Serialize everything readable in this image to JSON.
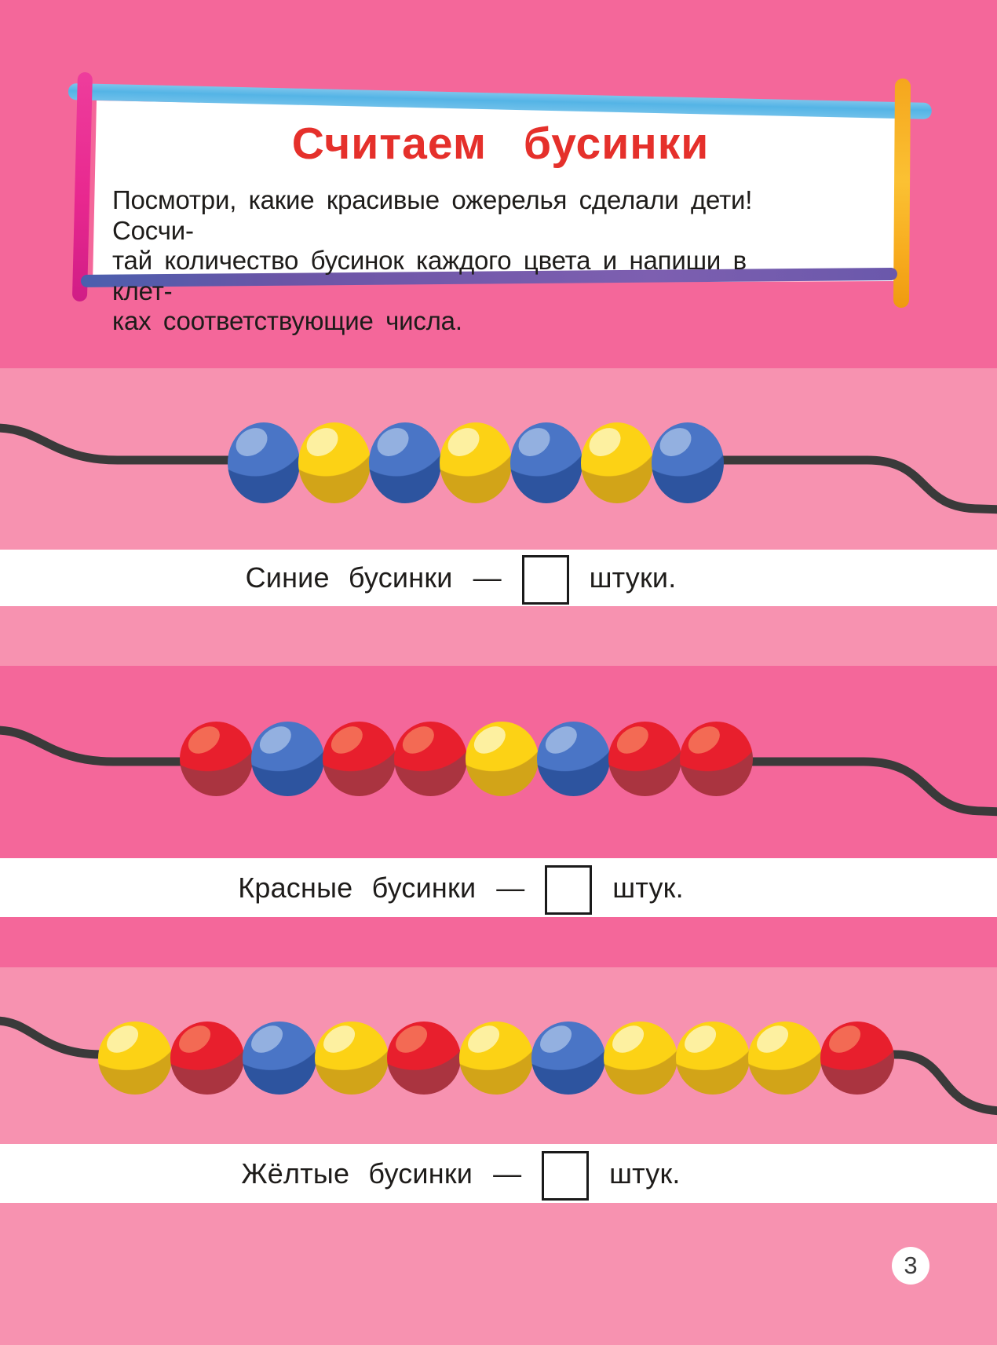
{
  "page": {
    "number": "3"
  },
  "header": {
    "title": "Считаем  бусинки",
    "instruction_lines": [
      "Посмотри, какие красивые ожерелья сделали дети! Сосчи-",
      "тай количество бусинок каждого цвета и напиши в клет-",
      "ках соответствующие числа."
    ]
  },
  "necklaces": [
    {
      "beads": [
        "blue",
        "yellow",
        "blue",
        "yellow",
        "blue",
        "yellow",
        "blue"
      ],
      "label": {
        "text": "Синие бусинки",
        "dash": "—",
        "answer": "",
        "suffix": "штуки."
      }
    },
    {
      "beads": [
        "red",
        "blue",
        "red",
        "red",
        "yellow",
        "blue",
        "red",
        "red"
      ],
      "label": {
        "text": "Красные бусинки",
        "dash": "—",
        "answer": "",
        "suffix": "штук."
      }
    },
    {
      "beads": [
        "yellow",
        "red",
        "blue",
        "yellow",
        "red",
        "yellow",
        "blue",
        "yellow",
        "yellow",
        "yellow",
        "red"
      ],
      "label": {
        "text": "Жёлтые бусинки",
        "dash": "—",
        "answer": "",
        "suffix": "штук."
      }
    }
  ],
  "colors": {
    "page_dark_pink": "#f4679a",
    "page_light_pink": "#f792b0",
    "strip_white": "#ffffff",
    "title_red": "#e5302b",
    "text_black": "#1e1c1a",
    "string_gray": "#3a3a3a",
    "answer_box_border": "#1a1a1a",
    "stroke_blue": "#54b4e6",
    "stroke_magenta": "#e8288f",
    "stroke_yellow": "#f8ad1f",
    "stroke_purple": "#6b55a6",
    "page_number_circle": "#ffffff",
    "bead_blue_base": "#4a75c6",
    "bead_blue_highlight": "#93b0e0",
    "bead_blue_shadow": "#2d549f",
    "bead_yellow_base": "#fcd215",
    "bead_yellow_highlight": "#fdf0a0",
    "bead_yellow_shadow": "#d2a418",
    "bead_red_base": "#e81f2d",
    "bead_red_highlight": "#f36a54",
    "bead_red_shadow": "#aa3440"
  }
}
